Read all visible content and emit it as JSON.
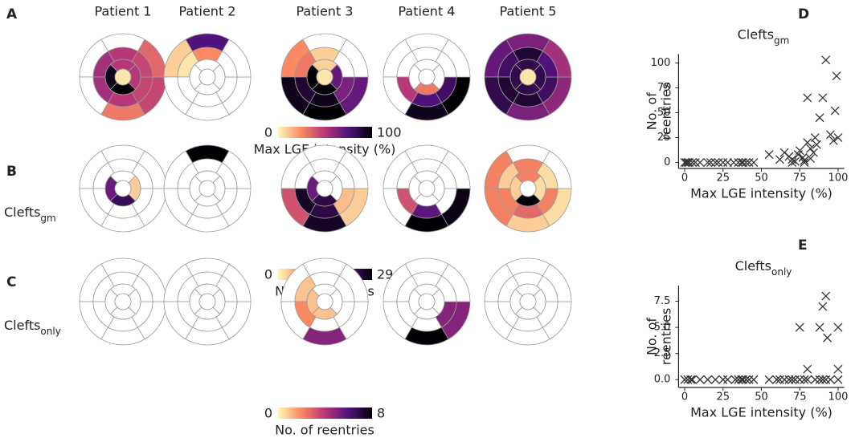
{
  "chart_data": [
    {
      "type": "bullseye",
      "panel": "A",
      "column_titles": [
        "Patient 1",
        "Patient 2",
        "Patient 3",
        "Patient 4",
        "Patient 5"
      ],
      "clim": [
        0,
        100
      ],
      "cticks": [
        0,
        100
      ],
      "colorbar_label": "Max LGE intensity (%)",
      "colormap": [
        "#fcfdbf",
        "#fc8961",
        "#b73779",
        "#51127c",
        "#000004"
      ],
      "plots": [
        [
          null,
          null,
          null,
          30,
          45,
          35,
          50,
          55,
          55,
          50,
          45,
          45,
          50,
          95,
          100,
          50,
          5
        ],
        [
          75,
          10,
          null,
          null,
          null,
          null,
          25,
          5,
          null,
          null,
          null,
          null,
          null,
          null,
          null,
          null,
          null
        ],
        [
          null,
          25,
          95,
          100,
          70,
          null,
          10,
          30,
          90,
          95,
          65,
          null,
          10,
          100,
          100,
          70,
          5
        ],
        [
          null,
          null,
          null,
          95,
          100,
          null,
          null,
          null,
          50,
          75,
          80,
          null,
          null,
          null,
          30,
          null,
          null
        ],
        [
          65,
          70,
          85,
          65,
          60,
          55,
          90,
          80,
          90,
          90,
          80,
          75,
          85,
          85,
          85,
          85,
          5
        ]
      ]
    },
    {
      "type": "bullseye",
      "panel": "B",
      "row_label": "Clefts",
      "row_label_sub": "gm",
      "clim": [
        0,
        29
      ],
      "cticks": [
        0,
        29
      ],
      "colorbar_label": "No. of reentries",
      "colormap": [
        "#fcfdbf",
        "#fc8961",
        "#b73779",
        "#51127c",
        "#000004"
      ],
      "plots": [
        [
          null,
          null,
          null,
          null,
          null,
          null,
          null,
          null,
          null,
          null,
          null,
          null,
          null,
          20,
          24,
          3,
          null
        ],
        [
          29,
          null,
          null,
          null,
          null,
          null,
          null,
          null,
          null,
          null,
          null,
          null,
          null,
          null,
          null,
          null,
          null
        ],
        [
          null,
          null,
          12,
          27,
          3,
          null,
          null,
          null,
          27,
          25,
          4,
          null,
          null,
          20,
          25,
          null,
          null
        ],
        [
          null,
          null,
          null,
          29,
          28,
          null,
          null,
          null,
          12,
          21,
          null,
          null,
          null,
          null,
          null,
          null,
          null
        ],
        [
          null,
          8,
          8,
          3,
          2,
          null,
          8,
          3,
          8,
          10,
          8,
          2,
          8,
          3,
          29,
          2,
          null
        ]
      ]
    },
    {
      "type": "bullseye",
      "panel": "C",
      "row_label": "Clefts",
      "row_label_sub": "only",
      "clim": [
        0,
        8
      ],
      "cticks": [
        0,
        8
      ],
      "colorbar_label": "No. of reentries",
      "colormap": [
        "#fcfdbf",
        "#fc8961",
        "#b73779",
        "#51127c",
        "#000004"
      ],
      "plots": [
        [
          null,
          null,
          null,
          null,
          null,
          null,
          null,
          null,
          null,
          null,
          null,
          null,
          null,
          null,
          null,
          null,
          null
        ],
        [
          null,
          null,
          null,
          null,
          null,
          null,
          null,
          null,
          null,
          null,
          null,
          null,
          null,
          null,
          null,
          null,
          null
        ],
        [
          null,
          null,
          null,
          5,
          null,
          null,
          null,
          1,
          2,
          null,
          null,
          null,
          null,
          1,
          1,
          null,
          null
        ],
        [
          null,
          null,
          null,
          8,
          5,
          null,
          null,
          null,
          null,
          null,
          5,
          null,
          null,
          null,
          null,
          null,
          null
        ],
        [
          null,
          null,
          null,
          null,
          null,
          null,
          null,
          null,
          null,
          null,
          null,
          null,
          null,
          null,
          null,
          null,
          null
        ]
      ]
    },
    {
      "type": "scatter",
      "panel": "D",
      "title": "Clefts",
      "title_sub": "gm",
      "xlabel": "Max LGE intensity (%)",
      "ylabel": [
        "No. of",
        "reentries"
      ],
      "color": "#333333",
      "xlim": [
        -4,
        104
      ],
      "ylim": [
        -6,
        109
      ],
      "xticks": [
        0,
        25,
        50,
        75,
        100
      ],
      "yticks": [
        0,
        25,
        50,
        75,
        100
      ],
      "x": [
        0,
        1,
        2,
        3,
        5,
        7,
        10,
        15,
        17,
        20,
        22,
        25,
        28,
        32,
        35,
        37,
        38,
        40,
        42,
        45,
        55,
        62,
        65,
        68,
        70,
        70,
        72,
        74,
        75,
        77,
        78,
        78,
        80,
        80,
        82,
        82,
        84,
        85,
        86,
        88,
        90,
        92,
        95,
        97,
        98,
        99,
        100
      ],
      "y": [
        0,
        0,
        0,
        0,
        0,
        0,
        0,
        0,
        0,
        0,
        0,
        0,
        0,
        0,
        0,
        0,
        0,
        0,
        0,
        0,
        8,
        3,
        10,
        6,
        3,
        0,
        1,
        8,
        12,
        5,
        2,
        0,
        20,
        65,
        14,
        4,
        10,
        25,
        18,
        45,
        65,
        103,
        28,
        22,
        52,
        87,
        25
      ]
    },
    {
      "type": "scatter",
      "panel": "E",
      "title": "Clefts",
      "title_sub": "only",
      "xlabel": "Max LGE intensity (%)",
      "ylabel": [
        "No. of",
        "reentries"
      ],
      "color": "#333333",
      "xlim": [
        -4,
        104
      ],
      "ylim": [
        -0.75,
        9
      ],
      "xticks": [
        0,
        25,
        50,
        75,
        100
      ],
      "yticks": [
        {
          "value": 0,
          "label": "0.0"
        },
        {
          "value": 2.5,
          "label": "2.5"
        },
        {
          "value": 5,
          "label": "5.0"
        },
        {
          "value": 7.5,
          "label": "7.5"
        }
      ],
      "x": [
        0,
        2,
        4,
        5,
        10,
        15,
        20,
        25,
        28,
        33,
        35,
        37,
        38,
        40,
        42,
        45,
        55,
        60,
        62,
        65,
        68,
        70,
        72,
        75,
        78,
        80,
        85,
        88,
        90,
        92,
        95,
        100,
        75,
        80,
        88,
        90,
        92,
        93,
        100,
        100
      ],
      "y": [
        0,
        0,
        0,
        0,
        0,
        0,
        0,
        0,
        0,
        0,
        0,
        0,
        0,
        0,
        0,
        0,
        0,
        0,
        0,
        0,
        0,
        0,
        0,
        0,
        0,
        0,
        0,
        0,
        0,
        0,
        0,
        0,
        5,
        1,
        5,
        7,
        8,
        4,
        5,
        1
      ]
    }
  ]
}
